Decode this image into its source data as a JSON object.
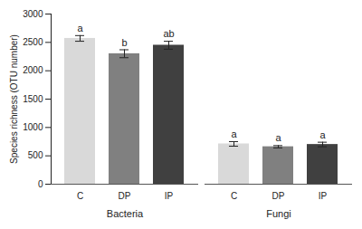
{
  "chart_data": {
    "type": "bar",
    "y_label": "Species richness (OTU number)",
    "categories": [
      "C",
      "DP",
      "IP",
      "C",
      "DP",
      "IP"
    ],
    "groups": [
      "Bacteria",
      "Bacteria",
      "Bacteria",
      "Fungi",
      "Fungi",
      "Fungi"
    ],
    "values": [
      2570,
      2300,
      2450,
      710,
      660,
      700
    ],
    "errors": [
      50,
      70,
      70,
      40,
      20,
      40
    ],
    "letters": [
      "a",
      "b",
      "ab",
      "a",
      "a",
      "a"
    ],
    "colors": [
      "#d9d9d9",
      "#808080",
      "#404040",
      "#d9d9d9",
      "#808080",
      "#404040"
    ],
    "ylim": [
      0,
      3000
    ],
    "yticks": [
      0,
      500,
      1000,
      1500,
      2000,
      2500,
      3000
    ],
    "grid": false,
    "data_labels": false
  }
}
